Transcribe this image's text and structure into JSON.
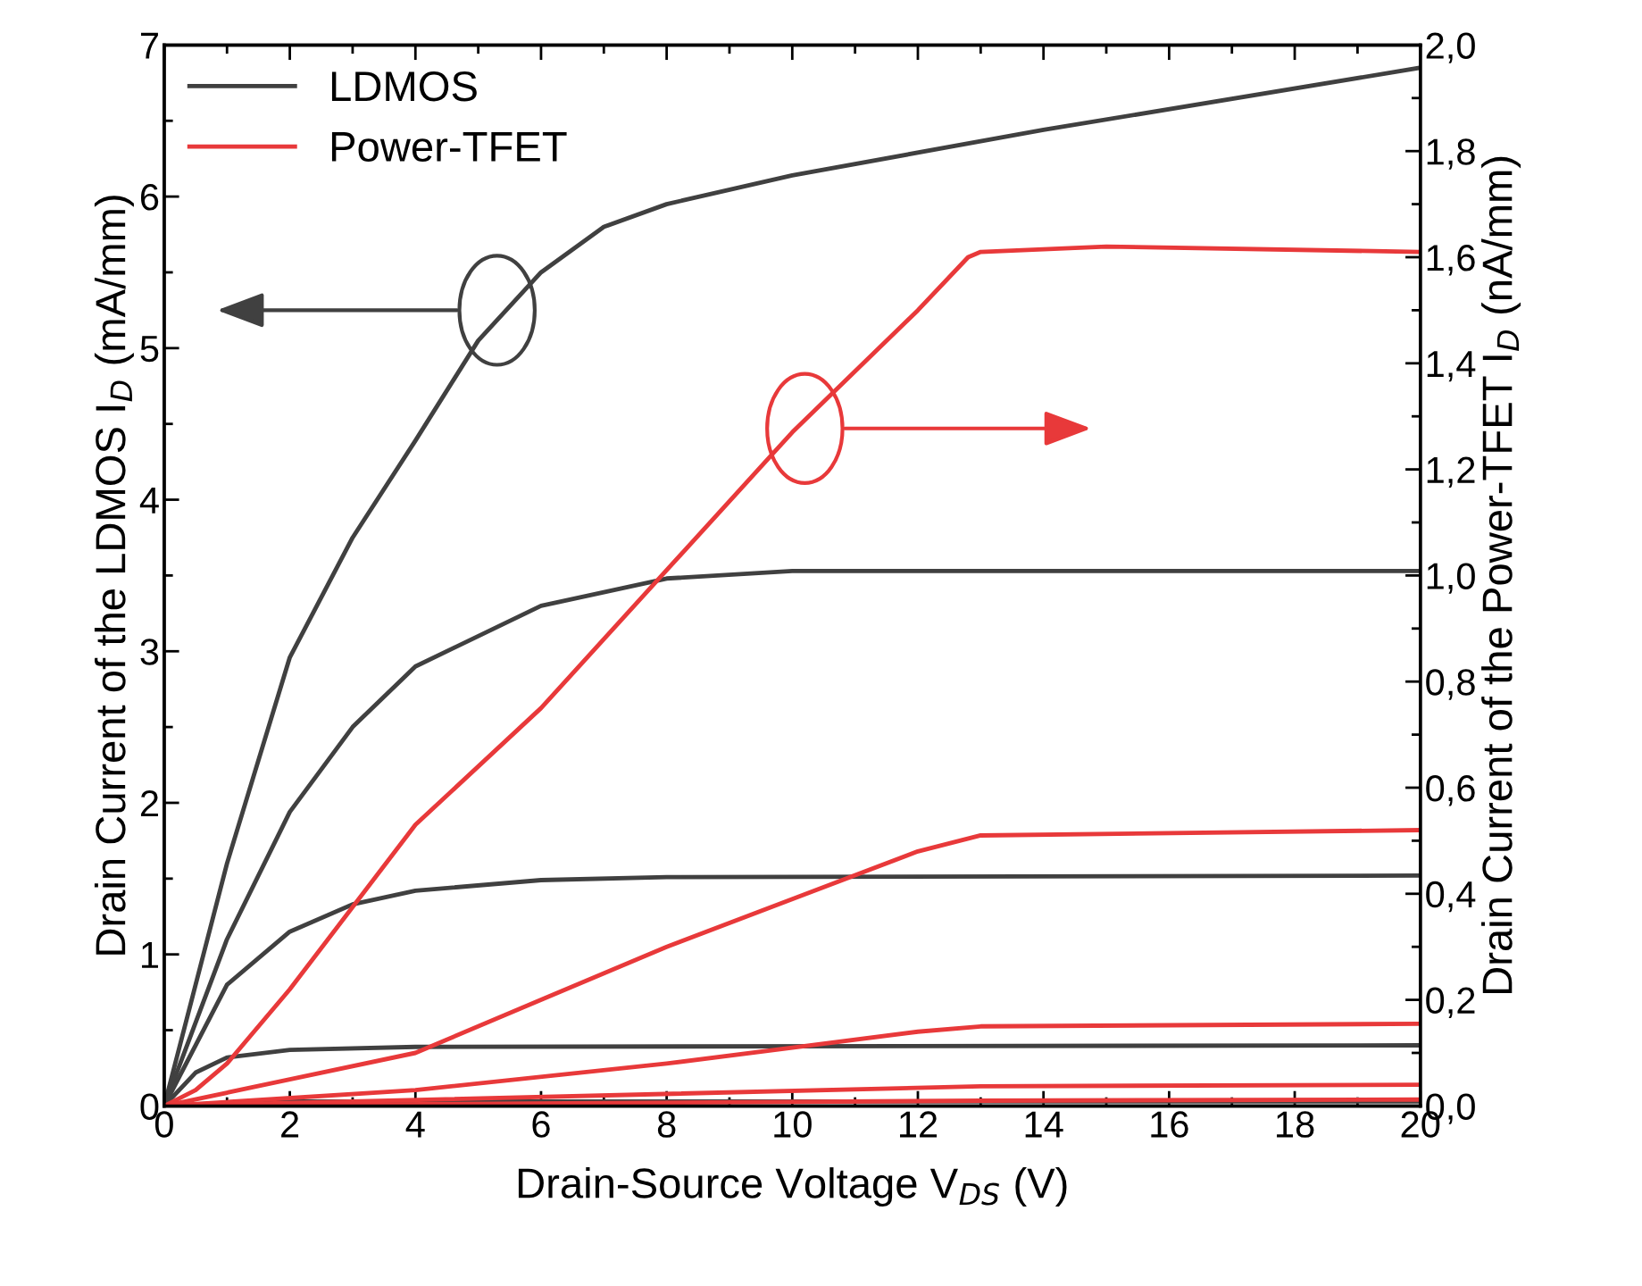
{
  "chart_data": {
    "type": "line",
    "xlabel": "Drain-Source Voltage V$_{DS}$ (V)",
    "ylabel": "Drain Current of the LDMOS I$_{D}$ (mA/mm)",
    "y2label": "Drain Current of the Power-TFET I$_{D}$ (nA/mm)",
    "xlim": [
      0,
      20
    ],
    "xticks": [
      0,
      2,
      4,
      6,
      8,
      10,
      12,
      14,
      16,
      18,
      20
    ],
    "ylim": [
      0,
      7
    ],
    "yticks": [
      0,
      1,
      2,
      3,
      4,
      5,
      6,
      7
    ],
    "y2lim": [
      0,
      2
    ],
    "y2ticks": [
      {
        "value": 0,
        "label": "0,0"
      },
      {
        "value": 0.2,
        "label": "0,2"
      },
      {
        "value": 0.4,
        "label": "0,4"
      },
      {
        "value": 0.6,
        "label": "0,6"
      },
      {
        "value": 0.8,
        "label": "0,8"
      },
      {
        "value": 1.0,
        "label": "1,0"
      },
      {
        "value": 1.2,
        "label": "1,2"
      },
      {
        "value": 1.4,
        "label": "1,4"
      },
      {
        "value": 1.6,
        "label": "1,6"
      },
      {
        "value": 1.8,
        "label": "1,8"
      },
      {
        "value": 2.0,
        "label": "2,0"
      }
    ],
    "grid": false,
    "legend": "top left",
    "marker": "none",
    "line_style": "solid",
    "series": [
      {
        "name": "LDMOS",
        "color": "#404040",
        "x": [
          0,
          1,
          2,
          3,
          4,
          5,
          6,
          7,
          8,
          10,
          14,
          20
        ],
        "values": [
          0,
          1.6,
          2.96,
          3.75,
          4.39,
          5.05,
          5.5,
          5.8,
          5.95,
          6.14,
          6.44,
          6.85
        ]
      },
      {
        "color": "#404040",
        "x": [
          0,
          1,
          2,
          3,
          4,
          6,
          8,
          10,
          20
        ],
        "values": [
          0,
          1.1,
          1.94,
          2.5,
          2.9,
          3.3,
          3.48,
          3.53,
          3.53
        ]
      },
      {
        "color": "#404040",
        "x": [
          0,
          1,
          2,
          3,
          4,
          6,
          8,
          20
        ],
        "values": [
          0,
          0.8,
          1.15,
          1.33,
          1.42,
          1.49,
          1.51,
          1.52
        ]
      },
      {
        "color": "#404040",
        "x": [
          0,
          0.5,
          1,
          2,
          4,
          20
        ],
        "values": [
          0,
          0.22,
          0.32,
          0.37,
          0.39,
          0.4
        ]
      },
      {
        "color": "#404040",
        "x": [
          0,
          1,
          2,
          20
        ],
        "values": [
          0,
          0.02,
          0.03,
          0.03
        ]
      },
      {
        "name": "Power-TFET",
        "color": "#e8393a",
        "axis": "y2",
        "x": [
          0,
          0.5,
          1,
          2,
          4,
          6,
          8,
          10,
          12,
          12.8,
          13,
          15,
          20
        ],
        "values": [
          0,
          0.03,
          0.08,
          0.22,
          0.53,
          0.75,
          1.01,
          1.27,
          1.5,
          1.6,
          1.61,
          1.62,
          1.61
        ]
      },
      {
        "color": "#e8393a",
        "axis": "y2",
        "x": [
          0,
          2,
          4,
          6,
          8,
          10,
          12,
          13,
          20
        ],
        "values": [
          0,
          0.05,
          0.1,
          0.2,
          0.3,
          0.39,
          0.48,
          0.51,
          0.52
        ]
      },
      {
        "color": "#e8393a",
        "axis": "y2",
        "x": [
          0,
          4,
          8,
          10,
          12,
          13,
          20
        ],
        "values": [
          0,
          0.03,
          0.08,
          0.11,
          0.14,
          0.15,
          0.155
        ]
      },
      {
        "color": "#e8393a",
        "axis": "y2",
        "x": [
          0,
          13,
          20
        ],
        "values": [
          0,
          0.037,
          0.04
        ]
      },
      {
        "color": "#e8393a",
        "axis": "y2",
        "x": [
          0,
          13,
          20
        ],
        "values": [
          0,
          0.01,
          0.012
        ]
      }
    ]
  }
}
